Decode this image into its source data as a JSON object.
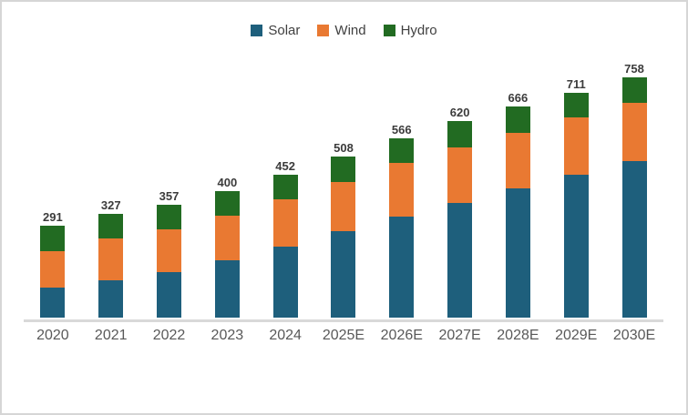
{
  "chart_data": {
    "type": "bar",
    "stacked": true,
    "categories": [
      "2020",
      "2021",
      "2022",
      "2023",
      "2024",
      "2025E",
      "2026E",
      "2027E",
      "2028E",
      "2029E",
      "2030E"
    ],
    "series": [
      {
        "name": "Solar",
        "color": "#1E5F7C",
        "values": [
          94,
          118,
          144,
          181,
          224,
          273,
          319,
          363,
          407,
          450,
          493
        ]
      },
      {
        "name": "Wind",
        "color": "#E97932",
        "values": [
          117,
          131,
          136,
          142,
          149,
          156,
          169,
          175,
          176,
          182,
          185
        ]
      },
      {
        "name": "Hydro",
        "color": "#226B22",
        "values": [
          80,
          78,
          77,
          77,
          79,
          79,
          78,
          82,
          83,
          79,
          80
        ]
      }
    ],
    "totals": [
      291,
      327,
      357,
      400,
      452,
      508,
      566,
      620,
      666,
      711,
      758
    ],
    "data_labels": "stack totals shown above each bar",
    "legend_position": "top",
    "y_axis_visible": false,
    "gridlines": false
  },
  "style": {
    "background": "#FFFFFF",
    "frame_border_color": "#D6D6D6",
    "axis_line_color": "#D9D9D9",
    "total_label_color": "#3B3B3B",
    "category_label_color": "#595959",
    "legend_label_color": "#404040"
  }
}
